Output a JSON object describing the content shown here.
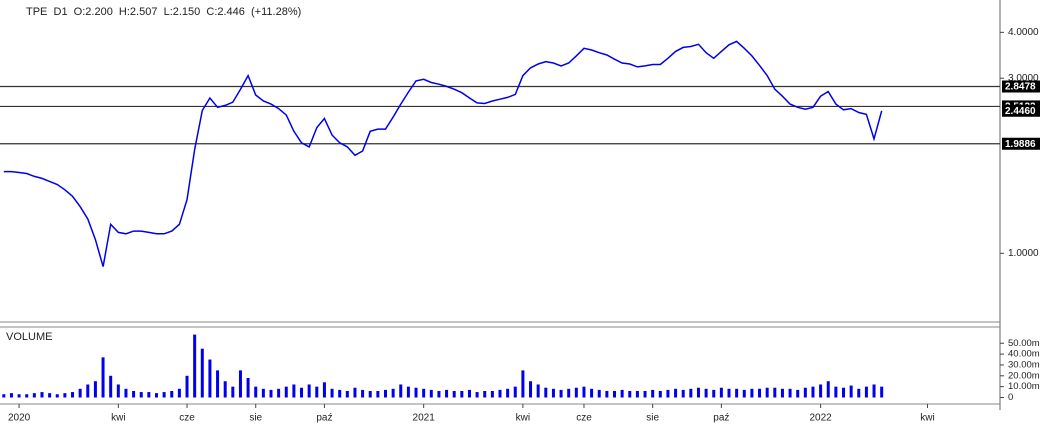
{
  "chart_data": [
    {
      "type": "line",
      "title": "TPE  D1  O:2.200  H:2.507  L:2.150  C:2.446  (+11.28%)",
      "color": "#0000ee",
      "log_scale": true,
      "ylim": [
        0.65,
        4.9
      ],
      "yticks": [
        {
          "value": 1,
          "label": "1.0000"
        },
        {
          "value": 3,
          "label": "3.0000"
        },
        {
          "value": 4,
          "label": "4.0000"
        }
      ],
      "hlines": [
        {
          "value": 2.8478,
          "label": "2.8478"
        },
        {
          "value": 2.5132,
          "label": "2.5132"
        },
        {
          "value": 1.9886,
          "label": "1.9886"
        }
      ],
      "last_price": {
        "value": 2.446,
        "label": "2.4460"
      },
      "values": [
        1.67,
        1.67,
        1.66,
        1.65,
        1.62,
        1.6,
        1.57,
        1.54,
        1.49,
        1.43,
        1.34,
        1.24,
        1.09,
        0.92,
        1.2,
        1.14,
        1.13,
        1.15,
        1.15,
        1.14,
        1.13,
        1.13,
        1.15,
        1.2,
        1.4,
        1.92,
        2.45,
        2.65,
        2.5,
        2.53,
        2.58,
        2.8,
        3.05,
        2.7,
        2.6,
        2.55,
        2.48,
        2.38,
        2.15,
        2.0,
        1.95,
        2.2,
        2.33,
        2.1,
        2.0,
        1.95,
        1.85,
        1.9,
        2.15,
        2.18,
        2.18,
        2.35,
        2.55,
        2.75,
        2.95,
        2.98,
        2.92,
        2.89,
        2.85,
        2.8,
        2.74,
        2.65,
        2.57,
        2.56,
        2.6,
        2.63,
        2.66,
        2.71,
        3.05,
        3.2,
        3.28,
        3.33,
        3.3,
        3.24,
        3.3,
        3.45,
        3.62,
        3.58,
        3.52,
        3.47,
        3.38,
        3.3,
        3.28,
        3.22,
        3.24,
        3.27,
        3.27,
        3.4,
        3.55,
        3.64,
        3.66,
        3.71,
        3.52,
        3.4,
        3.55,
        3.7,
        3.78,
        3.62,
        3.45,
        3.25,
        3.05,
        2.8,
        2.68,
        2.55,
        2.5,
        2.47,
        2.5,
        2.68,
        2.76,
        2.55,
        2.46,
        2.48,
        2.42,
        2.39,
        2.05,
        2.446,
        null,
        null,
        null,
        null,
        null,
        null,
        null,
        null,
        null,
        null,
        null,
        null,
        null,
        null,
        null
      ]
    },
    {
      "type": "bar",
      "title": "VOLUME",
      "color": "#0000ee",
      "ylim": [
        -6000000,
        65000000
      ],
      "yticks": [
        {
          "value": 0,
          "label": "0"
        },
        {
          "value": 10000000,
          "label": "10.00m"
        },
        {
          "value": 20000000,
          "label": "20.00m"
        },
        {
          "value": 30000000,
          "label": "30.00m"
        },
        {
          "value": 40000000,
          "label": "40.00m"
        },
        {
          "value": 50000000,
          "label": "50.00m"
        }
      ],
      "categories": [
        null,
        null,
        "2020",
        null,
        null,
        null,
        null,
        null,
        null,
        null,
        null,
        null,
        null,
        null,
        null,
        "kwi",
        null,
        null,
        null,
        null,
        null,
        null,
        null,
        null,
        "cze",
        null,
        null,
        null,
        null,
        null,
        null,
        null,
        null,
        "sie",
        null,
        null,
        null,
        null,
        null,
        null,
        null,
        null,
        "paź",
        null,
        null,
        null,
        null,
        null,
        null,
        null,
        null,
        null,
        null,
        null,
        null,
        "2021",
        null,
        null,
        null,
        null,
        null,
        null,
        null,
        null,
        null,
        null,
        null,
        null,
        "kwi",
        null,
        null,
        null,
        null,
        null,
        null,
        null,
        "cze",
        null,
        null,
        null,
        null,
        null,
        null,
        null,
        null,
        "sie",
        null,
        null,
        null,
        null,
        null,
        null,
        null,
        null,
        "paź",
        null,
        null,
        null,
        null,
        null,
        null,
        null,
        null,
        null,
        null,
        null,
        null,
        "2022",
        null,
        null,
        null,
        null,
        null,
        null,
        null,
        null,
        null,
        null,
        null,
        null,
        null,
        "kwi",
        null,
        null,
        null,
        null,
        null,
        null,
        null,
        null,
        null
      ],
      "values": [
        3000000,
        4000000,
        3000000,
        3000000,
        4000000,
        5000000,
        4000000,
        3000000,
        4000000,
        5000000,
        8000000,
        12000000,
        15000000,
        37000000,
        20000000,
        12000000,
        8000000,
        6000000,
        5000000,
        5000000,
        4000000,
        5000000,
        6000000,
        8000000,
        20000000,
        58000000,
        45000000,
        35000000,
        25000000,
        15000000,
        10000000,
        25000000,
        18000000,
        10000000,
        8000000,
        7000000,
        8000000,
        10000000,
        12000000,
        9000000,
        12000000,
        10000000,
        14000000,
        8000000,
        7000000,
        6000000,
        9000000,
        7000000,
        6000000,
        6000000,
        7000000,
        8000000,
        12000000,
        10000000,
        9000000,
        8000000,
        7000000,
        6000000,
        7000000,
        6000000,
        6000000,
        7000000,
        5000000,
        6000000,
        6000000,
        7000000,
        8000000,
        10000000,
        25000000,
        15000000,
        12000000,
        9000000,
        8000000,
        7000000,
        8000000,
        9000000,
        10000000,
        8000000,
        7000000,
        6000000,
        6000000,
        7000000,
        6000000,
        6000000,
        6000000,
        7000000,
        6000000,
        7000000,
        8000000,
        7000000,
        8000000,
        9000000,
        8000000,
        7000000,
        9000000,
        8000000,
        8000000,
        7000000,
        8000000,
        8000000,
        9000000,
        9000000,
        8000000,
        8000000,
        7000000,
        9000000,
        10000000,
        12000000,
        15000000,
        10000000,
        9000000,
        11000000,
        8000000,
        10000000,
        12000000,
        10000000,
        null,
        null,
        null,
        null,
        null,
        null,
        null,
        null,
        null,
        null,
        null,
        null,
        null,
        null,
        null
      ]
    }
  ]
}
